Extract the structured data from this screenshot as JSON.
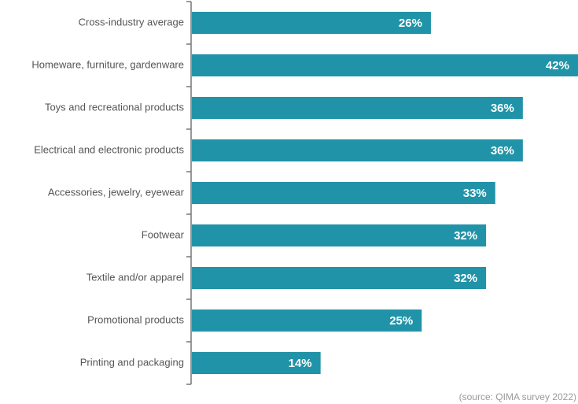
{
  "chart_data": {
    "type": "bar",
    "orientation": "horizontal",
    "categories": [
      "Cross-industry average",
      "Homeware, furniture, gardenware",
      "Toys and recreational products",
      "Electrical and electronic products",
      "Accessories, jewelry, eyewear",
      "Footwear",
      "Textile and/or apparel",
      "Promotional products",
      "Printing and packaging"
    ],
    "values": [
      26,
      42,
      36,
      36,
      33,
      32,
      32,
      25,
      14
    ],
    "value_labels": [
      "26%",
      "42%",
      "36%",
      "36%",
      "33%",
      "32%",
      "32%",
      "25%",
      "14%"
    ],
    "color": "#2193a8",
    "source": "(source: QIMA survey 2022)"
  }
}
